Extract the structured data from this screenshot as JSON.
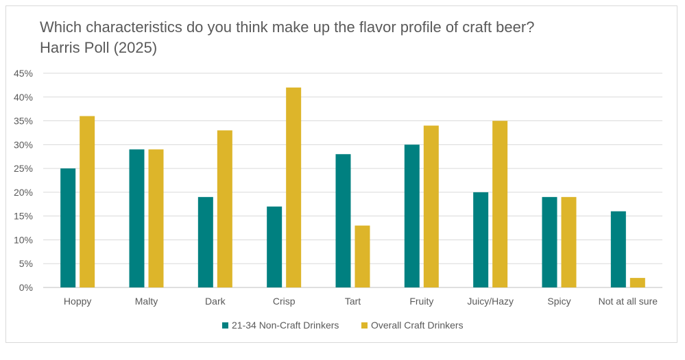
{
  "chart_data": {
    "type": "bar",
    "title": "Which characteristics do you think make up the flavor profile of craft beer?",
    "subtitle": "Harris Poll (2025)",
    "categories": [
      "Hoppy",
      "Malty",
      "Dark",
      "Crisp",
      "Tart",
      "Fruity",
      "Juicy/Hazy",
      "Spicy",
      "Not at all sure"
    ],
    "series": [
      {
        "name": "21-34 Non-Craft Drinkers",
        "color": "#008080",
        "values": [
          25,
          29,
          19,
          17,
          28,
          30,
          20,
          19,
          16
        ]
      },
      {
        "name": "Overall Craft Drinkers",
        "color": "#DDB52A",
        "values": [
          36,
          29,
          33,
          42,
          13,
          34,
          35,
          19,
          2
        ]
      }
    ],
    "y_ticks": [
      "0%",
      "5%",
      "10%",
      "15%",
      "20%",
      "25%",
      "30%",
      "35%",
      "40%",
      "45%"
    ],
    "ylim": [
      0,
      45
    ],
    "grid": true,
    "legend_position": "bottom"
  }
}
